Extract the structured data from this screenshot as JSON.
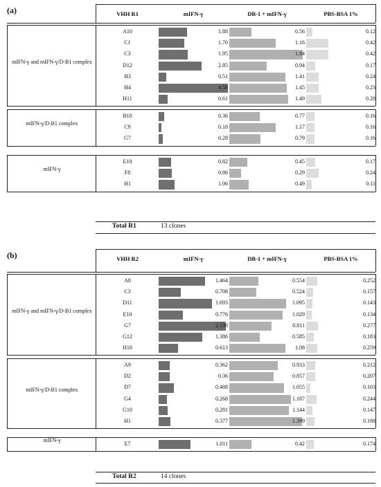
{
  "colors": {
    "mifn": "#6e6e6e",
    "db1": "#b0b0b0",
    "pbs": "#dcdcdc"
  },
  "panels": [
    {
      "label": "(a)",
      "headers": [
        "VHH R1",
        "mIFN-γ",
        "DB-1 + mIFN-γ",
        "PBS-BSA 1%"
      ],
      "max": {
        "mifn": 4.6,
        "db1": 1.9,
        "pbs": 1.3
      },
      "total_label": "Total R1",
      "total_value": "13 clones",
      "groups": [
        {
          "label": "mIFN-γ and mIFN-γ/D-B1 complex",
          "rows": [
            {
              "clone": "A10",
              "mifn": "1.88",
              "db1": "0.56",
              "pbs": "0.12"
            },
            {
              "clone": "C1",
              "mifn": "1.70",
              "db1": "1.16",
              "pbs": "0.42"
            },
            {
              "clone": "C3",
              "mifn": "1.95",
              "db1": "1.84",
              "pbs": "0.42"
            },
            {
              "clone": "D12",
              "mifn": "2.85",
              "db1": "0.94",
              "pbs": "0.17"
            },
            {
              "clone": "H3",
              "mifn": "0.51",
              "db1": "1.41",
              "pbs": "0.24"
            },
            {
              "clone": "H4",
              "mifn": "4.58",
              "db1": "1.45",
              "pbs": "0.23"
            },
            {
              "clone": "H11",
              "mifn": "0.61",
              "db1": "1.49",
              "pbs": "0.28"
            }
          ]
        },
        {
          "label": "mIFN-γ/D-B1 complex",
          "rows": [
            {
              "clone": "B10",
              "mifn": "0.36",
              "db1": "0.77",
              "pbs": "0.16"
            },
            {
              "clone": "C9",
              "mifn": "0.18",
              "db1": "1.17",
              "pbs": "0.16"
            },
            {
              "clone": "G7",
              "mifn": "0.28",
              "db1": "0.79",
              "pbs": "0.16"
            }
          ]
        },
        {
          "label": "mIFN-γ",
          "rows": [
            {
              "clone": "E10",
              "mifn": "0.82",
              "db1": "0.45",
              "pbs": "0.17"
            },
            {
              "clone": "F8",
              "mifn": "0.86",
              "db1": "0.29",
              "pbs": "0.24"
            },
            {
              "clone": "H1",
              "mifn": "1.06",
              "db1": "0.49",
              "pbs": "0.11"
            }
          ]
        }
      ]
    },
    {
      "label": "(b)",
      "headers": [
        "VHH R2",
        "mIFN-γ",
        "DB-1 + mIFN-γ",
        "PBS-BSA 1%"
      ],
      "max": {
        "mifn": 2.2,
        "db1": 1.45,
        "pbs": 1.6
      },
      "total_label": "Total R2",
      "total_value": "14 clones",
      "groups": [
        {
          "label": "mIFN-γ and mIFN-γ/D-B1 complex",
          "rows": [
            {
              "clone": "A8",
              "mifn": "1.464",
              "db1": "0.554",
              "pbs": "0.252"
            },
            {
              "clone": "C3",
              "mifn": "0.708",
              "db1": "0.524",
              "pbs": "0.157"
            },
            {
              "clone": "D11",
              "mifn": "1.693",
              "db1": "1.095",
              "pbs": "0.143"
            },
            {
              "clone": "E10",
              "mifn": "0.776",
              "db1": "1.029",
              "pbs": "0.134"
            },
            {
              "clone": "G7",
              "mifn": "2.138",
              "db1": "0.811",
              "pbs": "0.277"
            },
            {
              "clone": "G12",
              "mifn": "1.386",
              "db1": "0.585",
              "pbs": "0.183"
            },
            {
              "clone": "H10",
              "mifn": "0.613",
              "db1": "1.08",
              "pbs": "0.259"
            }
          ]
        },
        {
          "label": "mIFN-γ/D-B1 complex",
          "rows": [
            {
              "clone": "A9",
              "mifn": "0.362",
              "db1": "0.933",
              "pbs": "0.212"
            },
            {
              "clone": "D2",
              "mifn": "0.36",
              "db1": "0.857",
              "pbs": "0.207"
            },
            {
              "clone": "D7",
              "mifn": "0.488",
              "db1": "1.055",
              "pbs": "0.103"
            },
            {
              "clone": "G4",
              "mifn": "0.268",
              "db1": "1.187",
              "pbs": "0.244"
            },
            {
              "clone": "G10",
              "mifn": "0.281",
              "db1": "1.144",
              "pbs": "0.147"
            },
            {
              "clone": "H1",
              "mifn": "0.377",
              "db1": "1.399",
              "pbs": "0.188"
            }
          ]
        },
        {
          "label": "mIFN-γ",
          "rows": [
            {
              "clone": "E7",
              "mifn": "1.011",
              "db1": "0.42",
              "pbs": "0.174"
            }
          ]
        }
      ]
    }
  ]
}
